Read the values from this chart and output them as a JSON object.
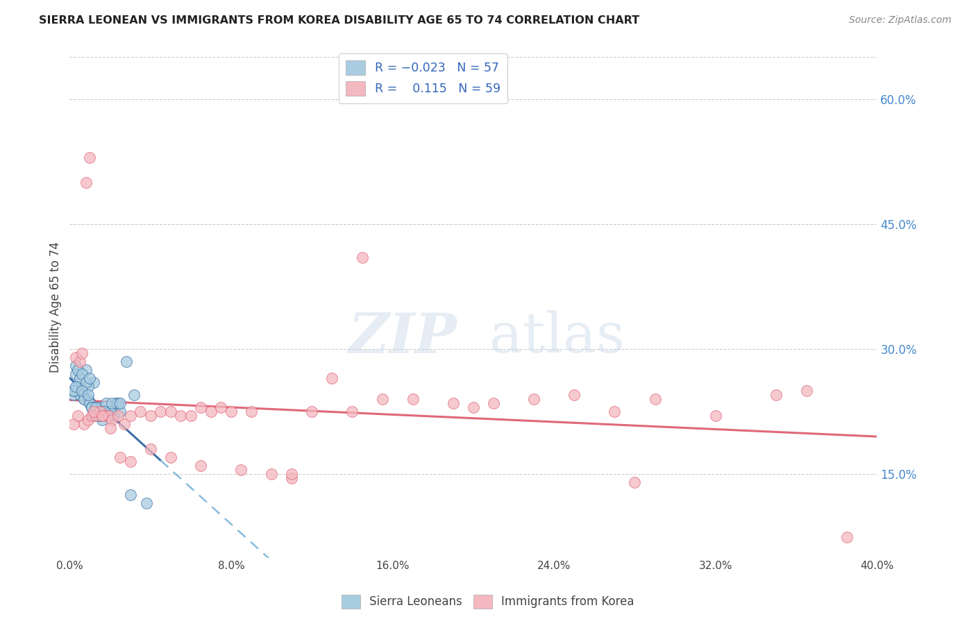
{
  "title": "SIERRA LEONEAN VS IMMIGRANTS FROM KOREA DISABILITY AGE 65 TO 74 CORRELATION CHART",
  "source": "Source: ZipAtlas.com",
  "ylabel": "Disability Age 65 to 74",
  "xlim": [
    0.0,
    40.0
  ],
  "ylim": [
    5.0,
    65.0
  ],
  "yticks": [
    15.0,
    30.0,
    45.0,
    60.0
  ],
  "xticks": [
    0.0,
    8.0,
    16.0,
    24.0,
    32.0,
    40.0
  ],
  "color_blue": "#a8cce0",
  "color_pink": "#f4b8c0",
  "color_blue_line": "#3a6fa8",
  "color_pink_line": "#e06878",
  "color_dashed": "#88bbdd",
  "watermark_zip": "ZIP",
  "watermark_atlas": "atlas",
  "legend_line1": "R = -0.023   N = 57",
  "legend_line2": "R =   0.115   N = 59",
  "sl_x": [
    0.2,
    0.3,
    0.4,
    0.5,
    0.6,
    0.7,
    0.8,
    0.9,
    1.0,
    1.1,
    1.2,
    1.3,
    1.4,
    1.5,
    1.6,
    1.7,
    1.8,
    1.9,
    2.0,
    2.1,
    2.2,
    2.3,
    2.5,
    2.8,
    3.2,
    0.2,
    0.3,
    0.5,
    0.7,
    0.9,
    1.0,
    1.1,
    1.2,
    1.3,
    1.4,
    1.5,
    1.6,
    1.8,
    2.0,
    2.4,
    0.2,
    0.4,
    0.6,
    0.8,
    1.0,
    1.1,
    1.3,
    1.5,
    1.7,
    1.9,
    2.1,
    2.5,
    3.0,
    3.8,
    0.3,
    0.6,
    0.9
  ],
  "sl_y": [
    24.5,
    28.0,
    25.5,
    24.5,
    25.0,
    24.0,
    27.5,
    24.0,
    23.5,
    23.0,
    26.0,
    22.5,
    22.0,
    23.0,
    22.0,
    22.5,
    22.0,
    22.0,
    22.5,
    22.5,
    22.0,
    23.5,
    22.5,
    28.5,
    24.5,
    25.0,
    27.0,
    26.5,
    24.0,
    25.5,
    23.5,
    23.0,
    22.0,
    22.5,
    22.0,
    22.5,
    21.5,
    23.5,
    22.5,
    23.5,
    25.0,
    27.5,
    27.0,
    26.0,
    26.5,
    23.0,
    23.0,
    22.0,
    22.5,
    22.0,
    23.5,
    23.5,
    12.5,
    11.5,
    25.5,
    25.0,
    24.5
  ],
  "kr_x": [
    0.2,
    0.3,
    0.5,
    0.7,
    0.9,
    1.1,
    1.3,
    1.5,
    1.7,
    1.9,
    2.1,
    2.4,
    2.7,
    3.0,
    3.5,
    4.0,
    4.5,
    5.0,
    5.5,
    6.0,
    6.5,
    7.0,
    7.5,
    8.0,
    9.0,
    10.0,
    11.0,
    12.0,
    13.0,
    14.0,
    15.5,
    17.0,
    19.0,
    21.0,
    23.0,
    25.0,
    27.0,
    29.0,
    32.0,
    35.0,
    38.5,
    0.4,
    0.6,
    0.8,
    1.0,
    1.2,
    1.6,
    2.0,
    2.5,
    3.0,
    4.0,
    5.0,
    6.5,
    8.5,
    11.0,
    14.5,
    20.0,
    28.0,
    36.5
  ],
  "kr_y": [
    21.0,
    29.0,
    28.5,
    21.0,
    21.5,
    22.0,
    22.0,
    22.5,
    22.0,
    22.0,
    21.5,
    22.0,
    21.0,
    22.0,
    22.5,
    22.0,
    22.5,
    22.5,
    22.0,
    22.0,
    23.0,
    22.5,
    23.0,
    22.5,
    22.5,
    15.0,
    14.5,
    22.5,
    26.5,
    22.5,
    24.0,
    24.0,
    23.5,
    23.5,
    24.0,
    24.5,
    22.5,
    24.0,
    22.0,
    24.5,
    7.5,
    22.0,
    29.5,
    50.0,
    53.0,
    22.5,
    22.0,
    20.5,
    17.0,
    16.5,
    18.0,
    17.0,
    16.0,
    15.5,
    15.0,
    41.0,
    23.0,
    14.0,
    25.0
  ],
  "sl_max_x": 4.5,
  "kr_max_x": 40.0,
  "sl_R": -0.023,
  "kr_R": 0.115
}
